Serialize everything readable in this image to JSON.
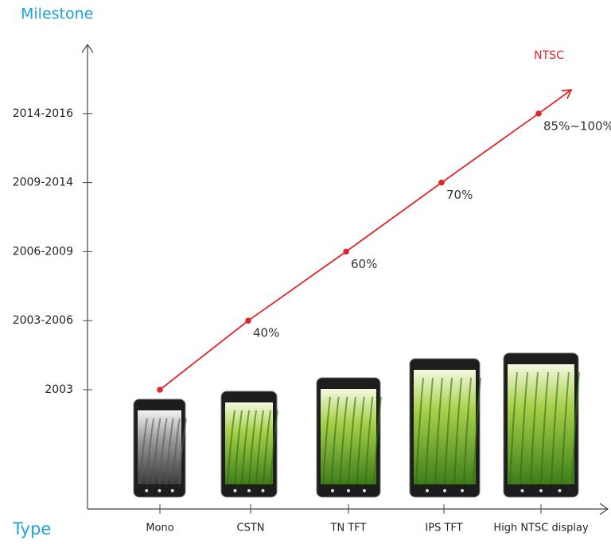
{
  "chart_data": {
    "type": "line",
    "y_label": "Milestone",
    "x_label": "Type",
    "categories": [
      "Mono",
      "CSTN",
      "TN TFT",
      "IPS TFT",
      "High NTSC display"
    ],
    "y_categories": [
      "2003",
      "2003-2006",
      "2006-2009",
      "2009-2014",
      "2014-2016"
    ],
    "series": [
      {
        "name": "NTSC",
        "color": "#e0252b",
        "values": [
          "2003",
          "2003-2006",
          "2006-2009",
          "2009-2014",
          "2014-2016"
        ],
        "value_labels": [
          null,
          "40%",
          "60%",
          "70%",
          "85%~100%"
        ]
      }
    ]
  }
}
